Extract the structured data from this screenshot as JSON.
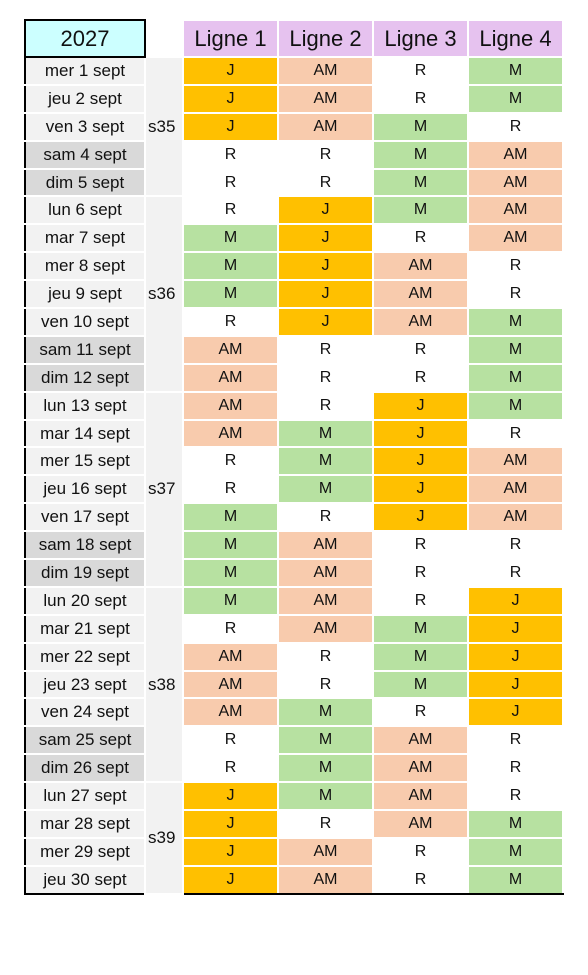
{
  "header": {
    "year": "2027",
    "lines": [
      "Ligne 1",
      "Ligne 2",
      "Ligne 3",
      "Ligne 4"
    ]
  },
  "colors": {
    "J": "#ffc000",
    "AM": "#f8cbad",
    "M": "#b7e1a1",
    "R": "#ffffff"
  },
  "weeks": [
    {
      "label": "s35",
      "days": [
        {
          "date": "mer 1 sept",
          "cells": [
            "J",
            "AM",
            "R",
            "M"
          ]
        },
        {
          "date": "jeu 2 sept",
          "cells": [
            "J",
            "AM",
            "R",
            "M"
          ]
        },
        {
          "date": "ven 3 sept",
          "cells": [
            "J",
            "AM",
            "M",
            "R"
          ]
        },
        {
          "date": "sam 4 sept",
          "cells": [
            "R",
            "R",
            "M",
            "AM"
          ]
        },
        {
          "date": "dim 5 sept",
          "cells": [
            "R",
            "R",
            "M",
            "AM"
          ]
        }
      ]
    },
    {
      "label": "s36",
      "days": [
        {
          "date": "lun 6 sept",
          "cells": [
            "R",
            "J",
            "M",
            "AM"
          ]
        },
        {
          "date": "mar 7 sept",
          "cells": [
            "M",
            "J",
            "R",
            "AM"
          ]
        },
        {
          "date": "mer 8 sept",
          "cells": [
            "M",
            "J",
            "AM",
            "R"
          ]
        },
        {
          "date": "jeu 9 sept",
          "cells": [
            "M",
            "J",
            "AM",
            "R"
          ]
        },
        {
          "date": "ven 10 sept",
          "cells": [
            "R",
            "J",
            "AM",
            "M"
          ]
        },
        {
          "date": "sam 11 sept",
          "cells": [
            "AM",
            "R",
            "R",
            "M"
          ]
        },
        {
          "date": "dim 12 sept",
          "cells": [
            "AM",
            "R",
            "R",
            "M"
          ]
        }
      ]
    },
    {
      "label": "s37",
      "days": [
        {
          "date": "lun 13 sept",
          "cells": [
            "AM",
            "R",
            "J",
            "M"
          ]
        },
        {
          "date": "mar 14 sept",
          "cells": [
            "AM",
            "M",
            "J",
            "R"
          ]
        },
        {
          "date": "mer 15 sept",
          "cells": [
            "R",
            "M",
            "J",
            "AM"
          ]
        },
        {
          "date": "jeu 16 sept",
          "cells": [
            "R",
            "M",
            "J",
            "AM"
          ]
        },
        {
          "date": "ven 17 sept",
          "cells": [
            "M",
            "R",
            "J",
            "AM"
          ]
        },
        {
          "date": "sam 18 sept",
          "cells": [
            "M",
            "AM",
            "R",
            "R"
          ]
        },
        {
          "date": "dim 19 sept",
          "cells": [
            "M",
            "AM",
            "R",
            "R"
          ]
        }
      ]
    },
    {
      "label": "s38",
      "days": [
        {
          "date": "lun 20 sept",
          "cells": [
            "M",
            "AM",
            "R",
            "J"
          ]
        },
        {
          "date": "mar 21 sept",
          "cells": [
            "R",
            "AM",
            "M",
            "J"
          ]
        },
        {
          "date": "mer 22 sept",
          "cells": [
            "AM",
            "R",
            "M",
            "J"
          ]
        },
        {
          "date": "jeu 23 sept",
          "cells": [
            "AM",
            "R",
            "M",
            "J"
          ]
        },
        {
          "date": "ven 24 sept",
          "cells": [
            "AM",
            "M",
            "R",
            "J"
          ]
        },
        {
          "date": "sam 25 sept",
          "cells": [
            "R",
            "M",
            "AM",
            "R"
          ]
        },
        {
          "date": "dim 26 sept",
          "cells": [
            "R",
            "M",
            "AM",
            "R"
          ]
        }
      ]
    },
    {
      "label": "s39",
      "days": [
        {
          "date": "lun 27 sept",
          "cells": [
            "J",
            "M",
            "AM",
            "R"
          ]
        },
        {
          "date": "mar 28 sept",
          "cells": [
            "J",
            "R",
            "AM",
            "M"
          ]
        },
        {
          "date": "mer 29 sept",
          "cells": [
            "J",
            "AM",
            "R",
            "M"
          ]
        },
        {
          "date": "jeu 30 sept",
          "cells": [
            "J",
            "AM",
            "R",
            "M"
          ]
        }
      ]
    }
  ]
}
